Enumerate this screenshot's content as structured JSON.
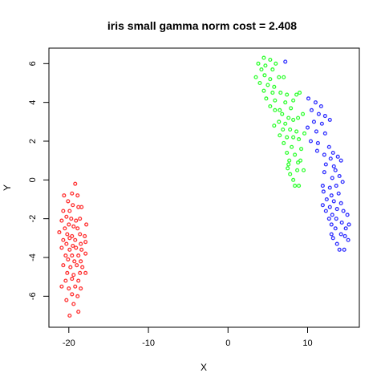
{
  "chart_data": {
    "type": "scatter",
    "title": "iris small gamma norm cost = 2.408",
    "xlabel": "X",
    "ylabel": "Y",
    "xlim": [
      -22.5,
      16.5
    ],
    "ylim": [
      -7.6,
      6.8
    ],
    "xticks": [
      -20,
      -10,
      0,
      10
    ],
    "yticks": [
      -6,
      -4,
      -2,
      0,
      2,
      4,
      6
    ],
    "grid": false,
    "series": [
      {
        "color": "#ff3030",
        "points": [
          [
            -19.2,
            -0.2
          ],
          [
            -19.6,
            -0.7
          ],
          [
            -18.9,
            -0.8
          ],
          [
            -20.6,
            -0.8
          ],
          [
            -20.1,
            -1.1
          ],
          [
            -19.5,
            -1.3
          ],
          [
            -18.8,
            -1.4
          ],
          [
            -20.7,
            -1.6
          ],
          [
            -19.9,
            -1.6
          ],
          [
            -18.4,
            -1.4
          ],
          [
            -20.3,
            -1.9
          ],
          [
            -19.7,
            -2.0
          ],
          [
            -19.1,
            -2.1
          ],
          [
            -18.6,
            -2.0
          ],
          [
            -20.9,
            -2.1
          ],
          [
            -20.0,
            -2.3
          ],
          [
            -19.4,
            -2.4
          ],
          [
            -18.9,
            -2.5
          ],
          [
            -17.8,
            -2.3
          ],
          [
            -20.5,
            -2.5
          ],
          [
            -21.2,
            -2.7
          ],
          [
            -20.2,
            -2.8
          ],
          [
            -19.6,
            -2.9
          ],
          [
            -18.6,
            -2.8
          ],
          [
            -18.0,
            -2.9
          ],
          [
            -20.7,
            -3.1
          ],
          [
            -19.9,
            -3.0
          ],
          [
            -19.2,
            -3.1
          ],
          [
            -18.5,
            -3.3
          ],
          [
            -17.9,
            -3.2
          ],
          [
            -20.3,
            -3.3
          ],
          [
            -19.5,
            -3.4
          ],
          [
            -20.9,
            -3.5
          ],
          [
            -19.9,
            -3.6
          ],
          [
            -19.1,
            -3.5
          ],
          [
            -18.4,
            -3.6
          ],
          [
            -20.4,
            -3.9
          ],
          [
            -19.6,
            -3.9
          ],
          [
            -18.8,
            -3.9
          ],
          [
            -17.9,
            -3.8
          ],
          [
            -20.1,
            -4.1
          ],
          [
            -19.3,
            -4.2
          ],
          [
            -18.5,
            -4.2
          ],
          [
            -20.7,
            -4.4
          ],
          [
            -19.8,
            -4.5
          ],
          [
            -19.0,
            -4.4
          ],
          [
            -18.3,
            -4.5
          ],
          [
            -20.2,
            -4.8
          ],
          [
            -19.4,
            -4.9
          ],
          [
            -18.6,
            -4.8
          ],
          [
            -17.9,
            -4.8
          ],
          [
            -20.4,
            -5.2
          ],
          [
            -19.6,
            -5.1
          ],
          [
            -18.8,
            -5.2
          ],
          [
            -20.9,
            -5.5
          ],
          [
            -20.0,
            -5.6
          ],
          [
            -19.2,
            -5.5
          ],
          [
            -18.5,
            -5.6
          ],
          [
            -19.6,
            -5.9
          ],
          [
            -18.9,
            -6.0
          ],
          [
            -20.3,
            -6.2
          ],
          [
            -19.4,
            -6.4
          ],
          [
            -18.8,
            -6.8
          ],
          [
            -19.9,
            -7.0
          ]
        ]
      },
      {
        "color": "#30ff30",
        "points": [
          [
            4.5,
            6.3
          ],
          [
            5.3,
            6.2
          ],
          [
            3.8,
            6.0
          ],
          [
            4.7,
            5.9
          ],
          [
            6.0,
            6.0
          ],
          [
            4.2,
            5.7
          ],
          [
            5.6,
            5.7
          ],
          [
            3.5,
            5.3
          ],
          [
            4.6,
            5.4
          ],
          [
            5.3,
            5.2
          ],
          [
            6.4,
            5.3
          ],
          [
            7.0,
            5.3
          ],
          [
            4.0,
            5.0
          ],
          [
            5.0,
            4.9
          ],
          [
            5.8,
            4.8
          ],
          [
            4.5,
            4.6
          ],
          [
            5.6,
            4.5
          ],
          [
            6.6,
            4.5
          ],
          [
            7.4,
            4.4
          ],
          [
            8.6,
            4.4
          ],
          [
            9.0,
            4.5
          ],
          [
            4.8,
            4.2
          ],
          [
            5.9,
            4.1
          ],
          [
            7.2,
            4.0
          ],
          [
            8.2,
            4.1
          ],
          [
            5.3,
            3.8
          ],
          [
            5.9,
            3.6
          ],
          [
            6.5,
            3.6
          ],
          [
            7.9,
            3.7
          ],
          [
            9.4,
            3.4
          ],
          [
            6.8,
            3.4
          ],
          [
            7.6,
            3.2
          ],
          [
            8.2,
            3.1
          ],
          [
            8.8,
            3.2
          ],
          [
            6.4,
            3.0
          ],
          [
            7.2,
            2.9
          ],
          [
            5.8,
            2.8
          ],
          [
            6.9,
            2.6
          ],
          [
            7.8,
            2.6
          ],
          [
            8.6,
            2.5
          ],
          [
            9.6,
            2.4
          ],
          [
            6.5,
            2.3
          ],
          [
            7.4,
            2.2
          ],
          [
            8.2,
            2.2
          ],
          [
            8.9,
            2.1
          ],
          [
            7.0,
            1.9
          ],
          [
            8.0,
            1.7
          ],
          [
            9.2,
            1.6
          ],
          [
            7.4,
            1.4
          ],
          [
            8.4,
            1.3
          ],
          [
            7.7,
            1.0
          ],
          [
            8.8,
            0.9
          ],
          [
            7.5,
            0.6
          ],
          [
            8.7,
            0.5
          ],
          [
            7.8,
            0.3
          ],
          [
            9.5,
            0.5
          ],
          [
            8.2,
            0.0
          ],
          [
            7.6,
            0.8
          ],
          [
            9.1,
            1.0
          ],
          [
            8.4,
            -0.3
          ],
          [
            8.9,
            -0.3
          ]
        ]
      },
      {
        "color": "#3030ff",
        "points": [
          [
            7.2,
            6.1
          ],
          [
            10.1,
            4.2
          ],
          [
            11.0,
            4.0
          ],
          [
            11.7,
            3.8
          ],
          [
            10.5,
            3.6
          ],
          [
            11.4,
            3.4
          ],
          [
            12.2,
            3.3
          ],
          [
            10.8,
            3.0
          ],
          [
            11.8,
            2.9
          ],
          [
            12.8,
            3.1
          ],
          [
            10.0,
            2.7
          ],
          [
            11.1,
            2.5
          ],
          [
            12.2,
            2.4
          ],
          [
            10.4,
            2.0
          ],
          [
            11.3,
            1.9
          ],
          [
            12.7,
            1.7
          ],
          [
            13.2,
            1.4
          ],
          [
            11.2,
            1.5
          ],
          [
            12.1,
            1.3
          ],
          [
            12.9,
            1.1
          ],
          [
            13.8,
            1.2
          ],
          [
            14.2,
            1.0
          ],
          [
            12.3,
            0.8
          ],
          [
            13.3,
            0.7
          ],
          [
            13.5,
            0.5
          ],
          [
            12.1,
            0.4
          ],
          [
            13.1,
            0.1
          ],
          [
            14.0,
            0.2
          ],
          [
            14.4,
            -0.1
          ],
          [
            11.9,
            -0.3
          ],
          [
            12.8,
            -0.4
          ],
          [
            13.6,
            -0.3
          ],
          [
            12.0,
            -0.6
          ],
          [
            13.0,
            -0.8
          ],
          [
            13.9,
            -0.7
          ],
          [
            12.4,
            -1.0
          ],
          [
            13.3,
            -1.1
          ],
          [
            14.2,
            -1.2
          ],
          [
            11.9,
            -1.3
          ],
          [
            12.8,
            -1.4
          ],
          [
            13.7,
            -1.5
          ],
          [
            12.3,
            -1.6
          ],
          [
            14.5,
            -1.6
          ],
          [
            13.1,
            -1.8
          ],
          [
            12.7,
            -2.0
          ],
          [
            13.6,
            -2.0
          ],
          [
            15.0,
            -1.8
          ],
          [
            13.0,
            -2.3
          ],
          [
            14.3,
            -2.2
          ],
          [
            14.8,
            -2.5
          ],
          [
            13.5,
            -2.5
          ],
          [
            15.2,
            -2.3
          ],
          [
            13.0,
            -2.8
          ],
          [
            14.2,
            -2.8
          ],
          [
            14.7,
            -2.9
          ],
          [
            13.2,
            -3.0
          ],
          [
            15.1,
            -3.1
          ],
          [
            13.7,
            -3.3
          ],
          [
            14.0,
            -3.6
          ],
          [
            14.6,
            -3.6
          ]
        ]
      }
    ]
  }
}
